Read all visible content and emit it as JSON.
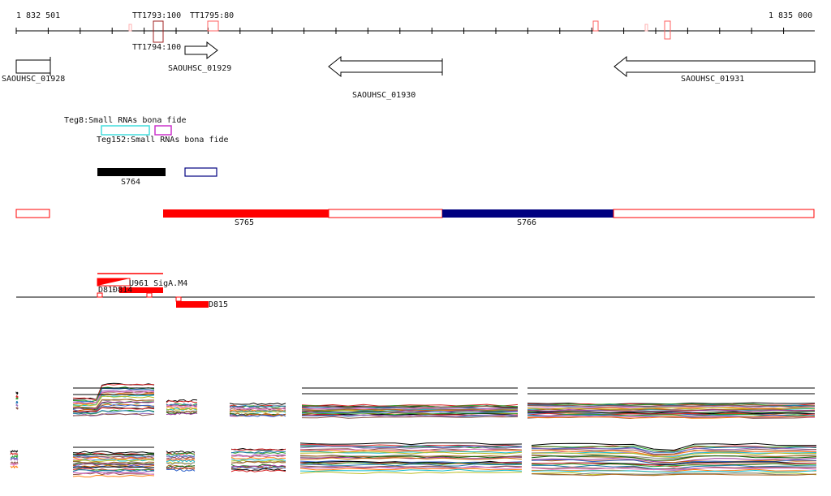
{
  "coords": {
    "start": "1 832 501",
    "end": "1 835 000"
  },
  "terminators": [
    "TT1793:100",
    "TT1795:80",
    "TT1794:100"
  ],
  "genes": [
    "SAOUHSC_01928",
    "SAOUHSC_01929",
    "SAOUHSC_01930",
    "SAOUHSC_01931"
  ],
  "small_rnas": [
    "Teg8:Small RNAs bona fide",
    "Teg152:Small RNAs bona fide"
  ],
  "segments": {
    "s764": "S764",
    "s765": "S765",
    "s766": "S766"
  },
  "signals": {
    "u961": "U961 SigA.M4",
    "d8xx": "D81Đ814",
    "d815": "D815"
  },
  "colors": {
    "red": "#ff0000",
    "navy": "#000080",
    "black": "#000000",
    "cyan": "#44dddd",
    "magenta": "#cc33cc",
    "dark_red": "#a02020"
  }
}
